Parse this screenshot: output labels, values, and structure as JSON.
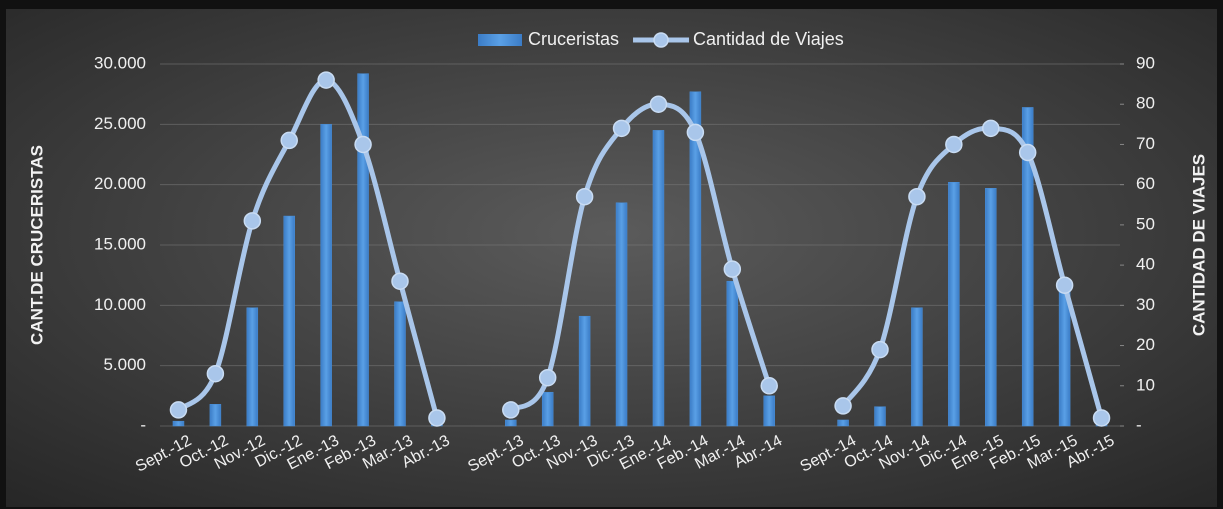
{
  "chart_data": {
    "type": "bar_line",
    "categories": [
      "Sept.-12",
      "Oct.-12",
      "Nov.-12",
      "Dic.-12",
      "Ene.-13",
      "Feb.-13",
      "Mar.-13",
      "Abr.-13",
      null,
      "Sept.-13",
      "Oct.-13",
      "Nov.-13",
      "Dic.-13",
      "Ene.-14",
      "Feb.-14",
      "Mar.-14",
      "Abr.-14",
      null,
      "Sept.-14",
      "Oct.-14",
      "Nov.-14",
      "Dic.-14",
      "Ene.-15",
      "Feb.-15",
      "Mar.-15",
      "Abr.-15"
    ],
    "series": [
      {
        "name": "Cruceristas",
        "type": "bar",
        "color": "#4a8fd8",
        "values": [
          400,
          1800,
          9800,
          17400,
          25000,
          29200,
          10300,
          100,
          null,
          500,
          2800,
          9100,
          18500,
          24500,
          27700,
          12000,
          2500,
          null,
          500,
          1600,
          9800,
          20200,
          19700,
          26400,
          11500,
          200
        ]
      },
      {
        "name": "Cantidad de Viajes",
        "type": "line",
        "axis": "y2",
        "color": "#a9c6ea",
        "values": [
          4,
          13,
          51,
          71,
          86,
          70,
          36,
          2,
          null,
          4,
          12,
          57,
          74,
          80,
          73,
          39,
          10,
          null,
          5,
          19,
          57,
          70,
          74,
          68,
          35,
          2
        ]
      }
    ],
    "ylabel": "CANT.DE CRUCERISTAS",
    "y2label": "CANTIDAD DE VIAJES",
    "ylim": [
      0,
      30000
    ],
    "yticks": [
      {
        "value": 0,
        "label": "-"
      },
      {
        "value": 5000,
        "label": "5.000"
      },
      {
        "value": 10000,
        "label": "10.000"
      },
      {
        "value": 15000,
        "label": "15.000"
      },
      {
        "value": 20000,
        "label": "20.000"
      },
      {
        "value": 25000,
        "label": "25.000"
      },
      {
        "value": 30000,
        "label": "30.000"
      }
    ],
    "y2lim": [
      0,
      90
    ],
    "y2ticks": [
      {
        "value": 0,
        "label": "-"
      },
      10,
      20,
      30,
      40,
      50,
      60,
      70,
      80,
      90
    ],
    "grid": true,
    "legend": "top"
  }
}
